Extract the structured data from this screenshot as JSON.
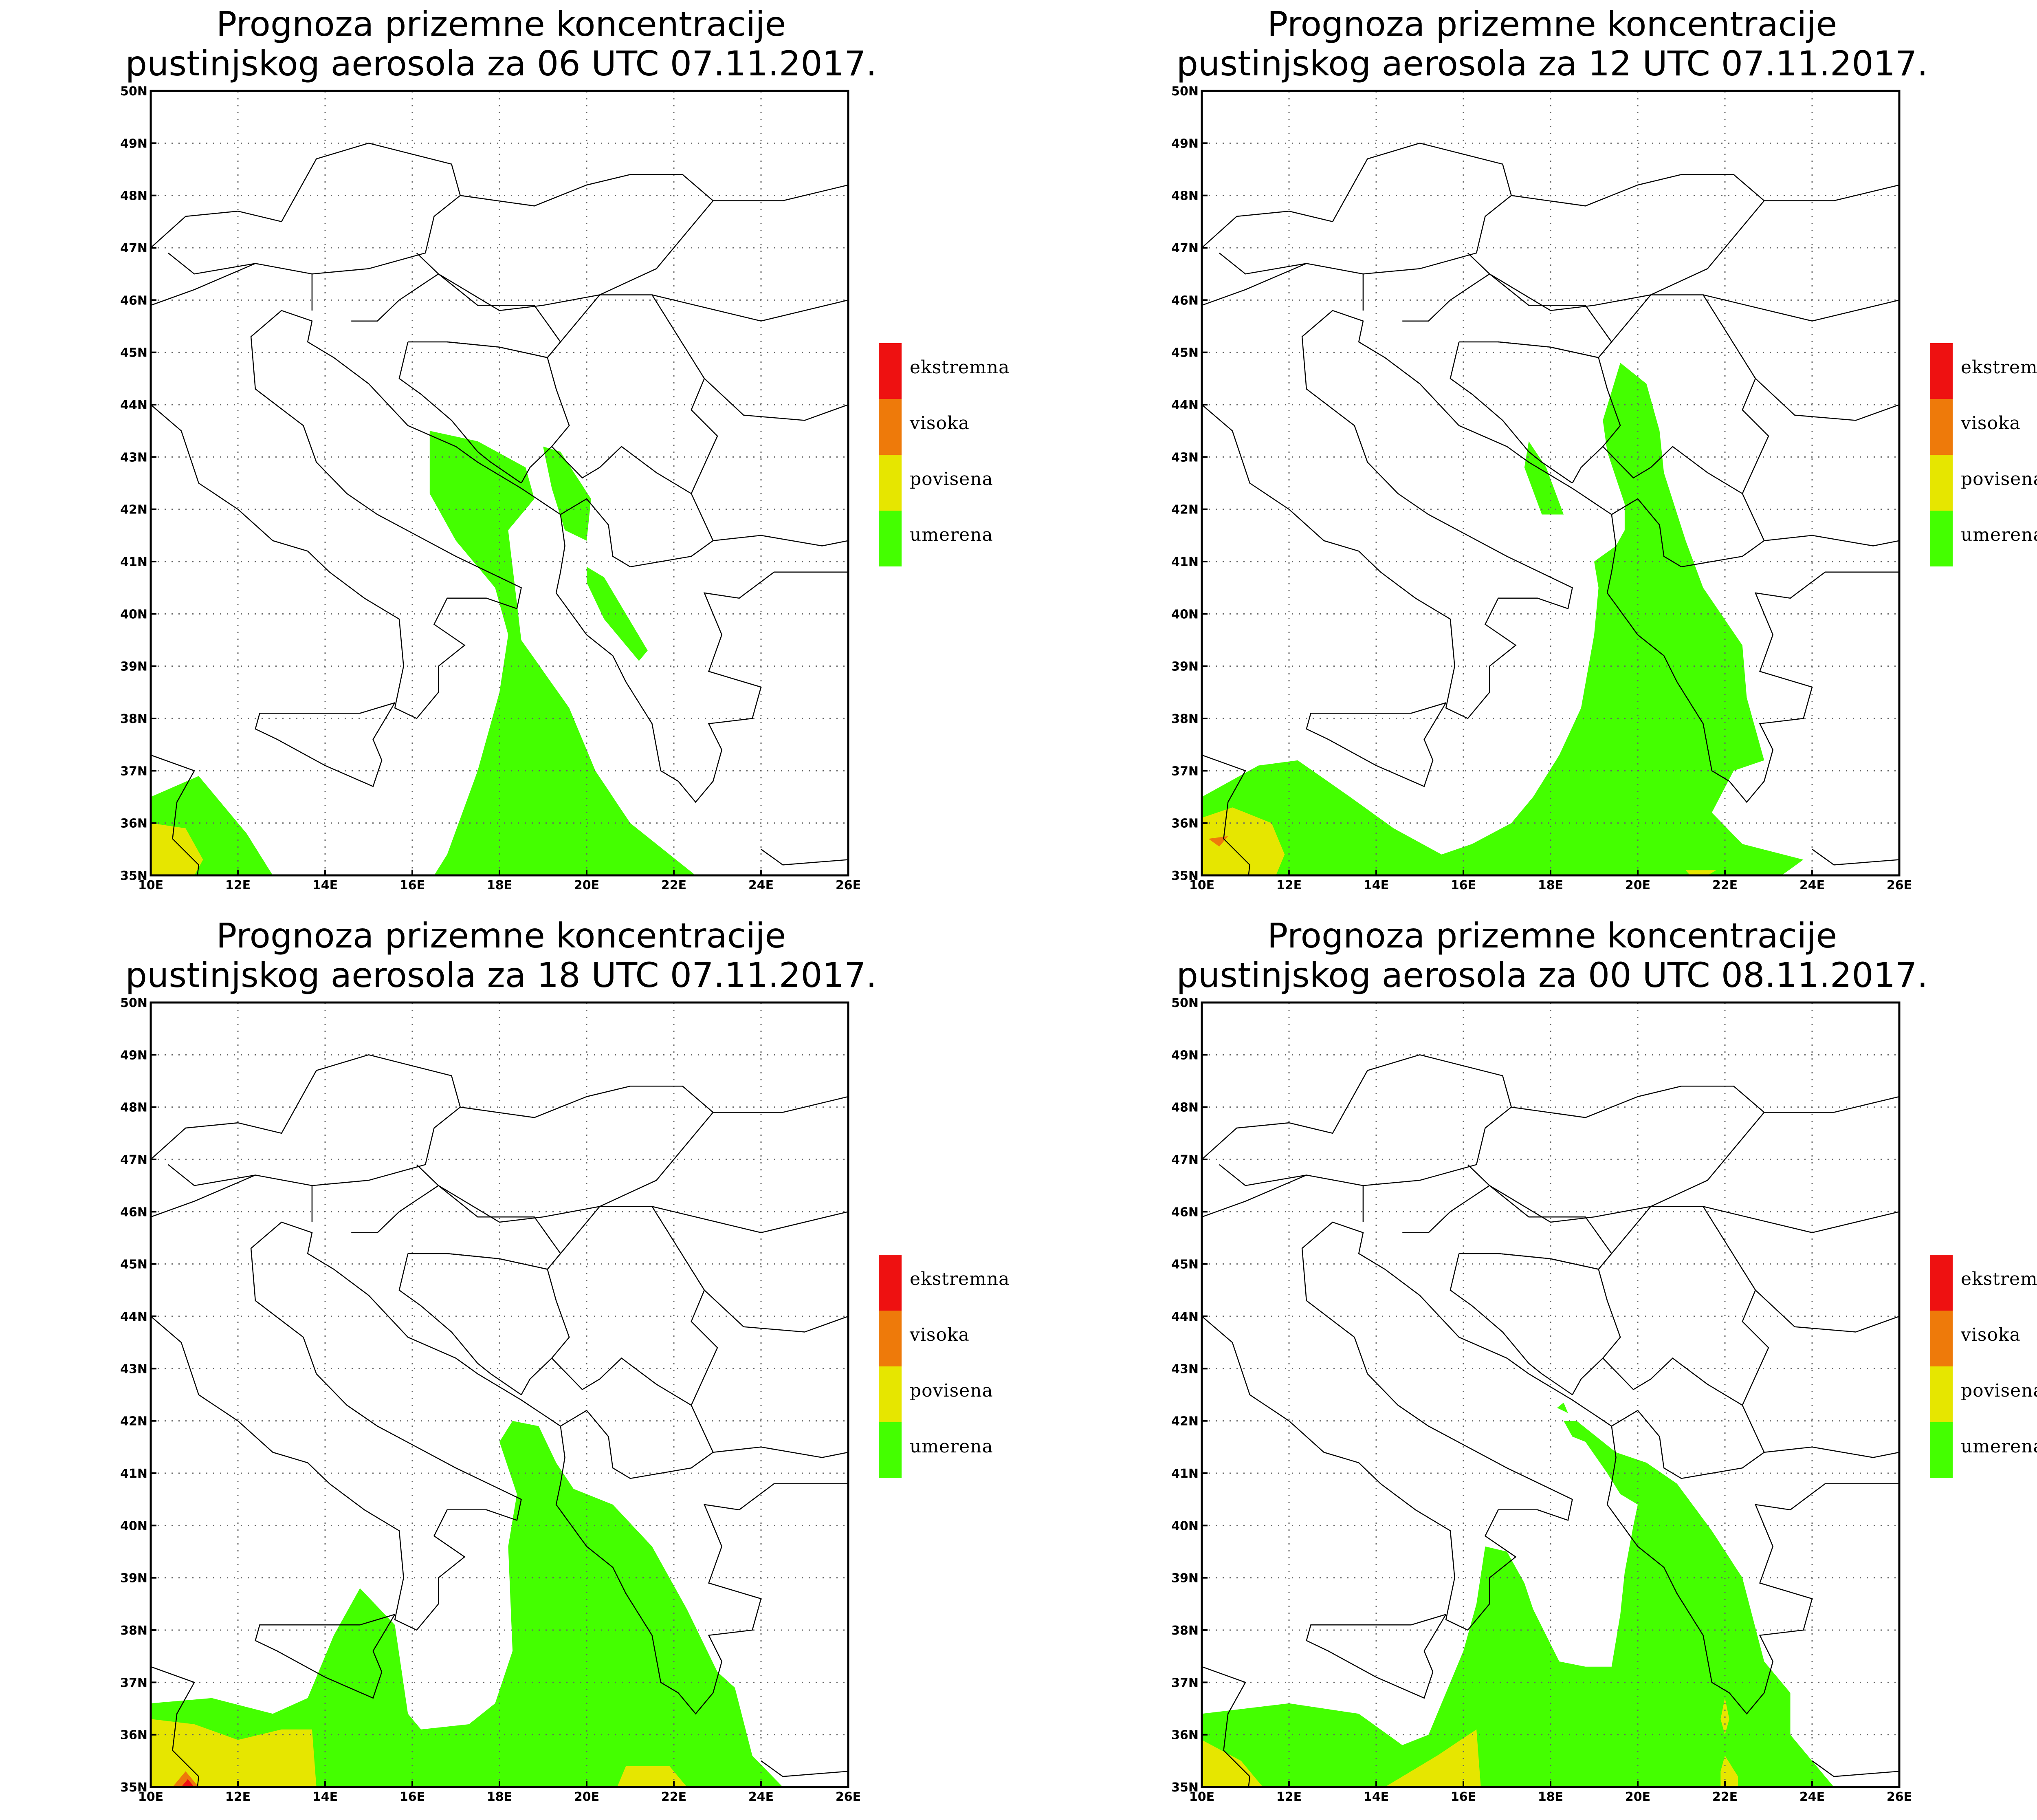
{
  "colors": {
    "ekstremna": "#ee1111",
    "visoka": "#ee7a0a",
    "povisena": "#e6e600",
    "umerena": "#44ff00"
  },
  "legend": [
    {
      "key": "ekstremna",
      "label": "ekstremna"
    },
    {
      "key": "visoka",
      "label": "visoka"
    },
    {
      "key": "povisena",
      "label": "povisena"
    },
    {
      "key": "umerena",
      "label": "umerena"
    }
  ],
  "lon_ticks": [
    "10E",
    "12E",
    "14E",
    "16E",
    "18E",
    "20E",
    "22E",
    "24E",
    "26E"
  ],
  "lat_ticks": [
    "35N",
    "36N",
    "37N",
    "38N",
    "39N",
    "40N",
    "41N",
    "42N",
    "43N",
    "44N",
    "45N",
    "46N",
    "47N",
    "48N",
    "49N",
    "50N"
  ],
  "maps": [
    {
      "title_line1": "Prognoza prizemne koncentracije",
      "title_line2": "pustinjskog aerosola za 06 UTC 07.11.2017.",
      "regions": [
        {
          "level": "umerena",
          "lonlat": [
            [
              16.4,
              43.5
            ],
            [
              17.5,
              43.3
            ],
            [
              18.6,
              42.8
            ],
            [
              18.8,
              42.2
            ],
            [
              18.2,
              41.6
            ],
            [
              18.5,
              39.5
            ],
            [
              19.6,
              38.2
            ],
            [
              20.2,
              37.0
            ],
            [
              21.0,
              36.0
            ],
            [
              22.5,
              35.0
            ],
            [
              16.5,
              35.0
            ],
            [
              16.8,
              35.4
            ],
            [
              17.5,
              37.0
            ],
            [
              18.0,
              38.5
            ],
            [
              18.2,
              39.6
            ],
            [
              17.9,
              40.5
            ],
            [
              17.0,
              41.4
            ],
            [
              16.4,
              42.3
            ]
          ]
        },
        {
          "level": "umerena",
          "lonlat": [
            [
              19.0,
              43.2
            ],
            [
              19.4,
              43.1
            ],
            [
              20.1,
              42.2
            ],
            [
              20.0,
              41.4
            ],
            [
              19.5,
              41.6
            ],
            [
              19.2,
              42.4
            ]
          ]
        },
        {
          "level": "umerena",
          "lonlat": [
            [
              20.0,
              40.9
            ],
            [
              20.4,
              40.7
            ],
            [
              21.4,
              39.3
            ],
            [
              21.2,
              39.1
            ],
            [
              20.4,
              39.9
            ],
            [
              20.0,
              40.6
            ]
          ]
        },
        {
          "level": "umerena",
          "lonlat": [
            [
              10.0,
              36.5
            ],
            [
              11.1,
              36.9
            ],
            [
              12.2,
              35.8
            ],
            [
              12.8,
              35.0
            ],
            [
              10.0,
              35.0
            ]
          ]
        },
        {
          "level": "povisena",
          "lonlat": [
            [
              10.0,
              36.0
            ],
            [
              10.8,
              35.9
            ],
            [
              11.2,
              35.3
            ],
            [
              11.0,
              35.0
            ],
            [
              10.0,
              35.0
            ]
          ]
        }
      ]
    },
    {
      "title_line1": "Prognoza prizemne koncentracije",
      "title_line2": "pustinjskog aerosola za 12 UTC 07.11.2017.",
      "regions": [
        {
          "level": "umerena",
          "lonlat": [
            [
              19.6,
              44.8
            ],
            [
              20.2,
              44.4
            ],
            [
              20.5,
              43.5
            ],
            [
              20.6,
              42.7
            ],
            [
              21.1,
              41.4
            ],
            [
              21.5,
              40.5
            ],
            [
              22.4,
              39.4
            ],
            [
              22.5,
              38.4
            ],
            [
              22.9,
              37.2
            ],
            [
              22.2,
              37.0
            ],
            [
              21.7,
              36.2
            ],
            [
              22.4,
              35.6
            ],
            [
              23.8,
              35.3
            ],
            [
              23.3,
              35.0
            ],
            [
              10.0,
              35.0
            ],
            [
              10.0,
              36.5
            ],
            [
              11.3,
              37.1
            ],
            [
              12.2,
              37.2
            ],
            [
              13.4,
              36.5
            ],
            [
              14.4,
              35.9
            ],
            [
              15.5,
              35.4
            ],
            [
              16.2,
              35.6
            ],
            [
              17.1,
              36.0
            ],
            [
              17.6,
              36.5
            ],
            [
              18.2,
              37.3
            ],
            [
              18.7,
              38.2
            ],
            [
              19.0,
              39.6
            ],
            [
              19.1,
              40.5
            ],
            [
              19.0,
              41.0
            ],
            [
              19.5,
              41.3
            ],
            [
              19.7,
              41.6
            ],
            [
              19.7,
              42.1
            ],
            [
              19.3,
              43.1
            ],
            [
              19.2,
              43.7
            ]
          ]
        },
        {
          "level": "umerena",
          "lonlat": [
            [
              17.5,
              43.3
            ],
            [
              17.9,
              42.8
            ],
            [
              18.3,
              41.9
            ],
            [
              17.8,
              41.9
            ],
            [
              17.4,
              42.8
            ]
          ]
        },
        {
          "level": "povisena",
          "lonlat": [
            [
              10.0,
              36.1
            ],
            [
              10.7,
              36.3
            ],
            [
              11.6,
              36.0
            ],
            [
              11.9,
              35.4
            ],
            [
              11.7,
              35.0
            ],
            [
              10.0,
              35.0
            ]
          ]
        },
        {
          "level": "povisena",
          "lonlat": [
            [
              21.1,
              35.1
            ],
            [
              21.8,
              35.1
            ],
            [
              21.6,
              35.0
            ],
            [
              21.2,
              35.0
            ]
          ]
        },
        {
          "level": "visoka",
          "lonlat": [
            [
              10.15,
              35.7
            ],
            [
              10.6,
              35.75
            ],
            [
              10.4,
              35.55
            ]
          ]
        }
      ]
    },
    {
      "title_line1": "Prognoza prizemne koncentracije",
      "title_line2": "pustinjskog aerosola za 18 UTC 07.11.2017.",
      "regions": [
        {
          "level": "umerena",
          "lonlat": [
            [
              18.3,
              42.0
            ],
            [
              18.9,
              41.9
            ],
            [
              19.3,
              41.2
            ],
            [
              19.7,
              40.7
            ],
            [
              20.6,
              40.4
            ],
            [
              21.5,
              39.6
            ],
            [
              22.3,
              38.4
            ],
            [
              23.0,
              37.2
            ],
            [
              23.4,
              36.9
            ],
            [
              23.8,
              35.6
            ],
            [
              24.5,
              35.0
            ],
            [
              10.0,
              35.0
            ],
            [
              10.0,
              36.6
            ],
            [
              11.4,
              36.7
            ],
            [
              12.8,
              36.4
            ],
            [
              13.6,
              36.7
            ],
            [
              14.2,
              37.9
            ],
            [
              14.8,
              38.8
            ],
            [
              15.6,
              38.1
            ],
            [
              15.9,
              36.4
            ],
            [
              16.2,
              36.1
            ],
            [
              17.3,
              36.2
            ],
            [
              17.9,
              36.6
            ],
            [
              18.3,
              37.6
            ],
            [
              18.2,
              39.6
            ],
            [
              18.4,
              40.6
            ],
            [
              18.0,
              41.6
            ]
          ]
        },
        {
          "level": "povisena",
          "lonlat": [
            [
              10.0,
              36.3
            ],
            [
              11.0,
              36.2
            ],
            [
              12.0,
              35.9
            ],
            [
              13.0,
              36.1
            ],
            [
              13.7,
              36.1
            ],
            [
              13.8,
              35.0
            ],
            [
              10.0,
              35.0
            ]
          ]
        },
        {
          "level": "povisena",
          "lonlat": [
            [
              20.7,
              35.0
            ],
            [
              20.9,
              35.4
            ],
            [
              21.9,
              35.4
            ],
            [
              22.3,
              35.0
            ]
          ]
        },
        {
          "level": "visoka",
          "lonlat": [
            [
              10.5,
              35.0
            ],
            [
              10.8,
              35.3
            ],
            [
              11.1,
              35.0
            ]
          ]
        },
        {
          "level": "ekstremna",
          "lonlat": [
            [
              10.7,
              35.0
            ],
            [
              10.85,
              35.15
            ],
            [
              11.0,
              35.0
            ]
          ]
        }
      ]
    },
    {
      "title_line1": "Prognoza prizemne koncentracije",
      "title_line2": "pustinjskog aerosola za 00 UTC 08.11.2017.",
      "regions": [
        {
          "level": "umerena",
          "lonlat": [
            [
              18.3,
              42.0
            ],
            [
              18.6,
              42.0
            ],
            [
              19.5,
              41.4
            ],
            [
              20.2,
              41.2
            ],
            [
              20.9,
              40.8
            ],
            [
              21.7,
              39.9
            ],
            [
              22.4,
              39.0
            ],
            [
              22.9,
              37.4
            ],
            [
              23.5,
              36.8
            ],
            [
              23.5,
              36.0
            ],
            [
              24.5,
              35.0
            ],
            [
              10.0,
              35.0
            ],
            [
              10.0,
              36.4
            ],
            [
              12.0,
              36.6
            ],
            [
              13.6,
              36.4
            ],
            [
              14.6,
              35.8
            ],
            [
              15.2,
              36.0
            ],
            [
              16.0,
              37.6
            ],
            [
              16.3,
              38.5
            ],
            [
              16.5,
              39.6
            ],
            [
              17.0,
              39.5
            ],
            [
              17.4,
              38.9
            ],
            [
              17.6,
              38.4
            ],
            [
              18.2,
              37.4
            ],
            [
              18.8,
              37.3
            ],
            [
              19.4,
              37.3
            ],
            [
              19.6,
              38.3
            ],
            [
              19.7,
              39.1
            ],
            [
              19.9,
              40.0
            ],
            [
              20.0,
              40.4
            ],
            [
              19.6,
              40.6
            ],
            [
              19.3,
              41.0
            ],
            [
              18.8,
              41.6
            ],
            [
              18.5,
              41.7
            ]
          ]
        },
        {
          "level": "umerena",
          "lonlat": [
            [
              18.15,
              42.25
            ],
            [
              18.3,
              42.35
            ],
            [
              18.4,
              42.15
            ]
          ]
        },
        {
          "level": "povisena",
          "lonlat": [
            [
              10.0,
              35.9
            ],
            [
              10.9,
              35.5
            ],
            [
              11.4,
              35.0
            ],
            [
              10.0,
              35.0
            ]
          ]
        },
        {
          "level": "povisena",
          "lonlat": [
            [
              14.2,
              35.0
            ],
            [
              15.4,
              35.6
            ],
            [
              16.3,
              36.1
            ],
            [
              16.4,
              35.0
            ]
          ]
        },
        {
          "level": "povisena",
          "lonlat": [
            [
              21.9,
              35.0
            ],
            [
              21.9,
              35.3
            ],
            [
              22.0,
              35.6
            ],
            [
              22.3,
              35.2
            ],
            [
              22.3,
              35.0
            ]
          ]
        },
        {
          "level": "povisena",
          "lonlat": [
            [
              21.9,
              36.3
            ],
            [
              22.0,
              36.7
            ],
            [
              22.1,
              36.3
            ],
            [
              22.0,
              36.0
            ]
          ]
        }
      ]
    }
  ]
}
